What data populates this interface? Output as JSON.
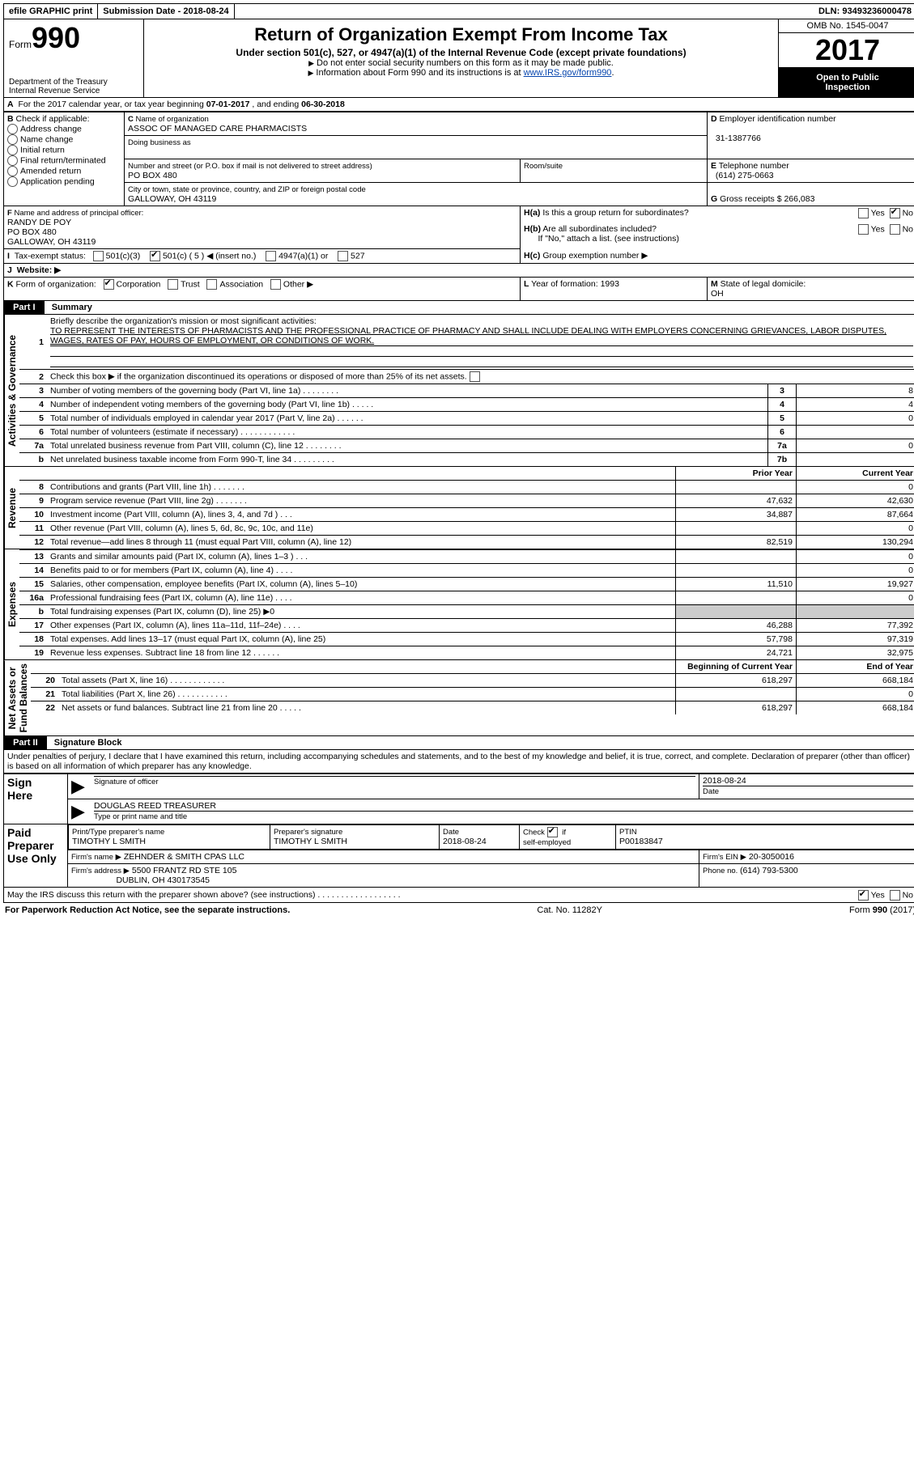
{
  "topbar": {
    "efile": "efile GRAPHIC print",
    "submission_label": "Submission Date - ",
    "submission_date": "2018-08-24",
    "dln_label": "DLN: ",
    "dln": "93493236000478"
  },
  "header": {
    "form_word": "Form",
    "form_number": "990",
    "dept1": "Department of the Treasury",
    "dept2": "Internal Revenue Service",
    "title": "Return of Organization Exempt From Income Tax",
    "subtitle": "Under section 501(c), 527, or 4947(a)(1) of the Internal Revenue Code (except private foundations)",
    "note1": "Do not enter social security numbers on this form as it may be made public.",
    "note2_pre": "Information about Form 990 and its instructions is at ",
    "note2_link": "www.IRS.gov/form990",
    "omb": "OMB No. 1545-0047",
    "year": "2017",
    "open1": "Open to Public",
    "open2": "Inspection"
  },
  "A": {
    "text_pre": "For the 2017 calendar year, or tax year beginning ",
    "begin": "07-01-2017",
    "mid": " , and ending ",
    "end": "06-30-2018"
  },
  "B": {
    "label": "Check if applicable:",
    "opts": [
      "Address change",
      "Name change",
      "Initial return",
      "Final return/terminated",
      "Amended return",
      "Application pending"
    ]
  },
  "C": {
    "name_label": "Name of organization",
    "name": "ASSOC OF MANAGED CARE PHARMACISTS",
    "dba_label": "Doing business as",
    "dba": "",
    "street_label": "Number and street (or P.O. box if mail is not delivered to street address)",
    "room_label": "Room/suite",
    "street": "PO BOX 480",
    "city_label": "City or town, state or province, country, and ZIP or foreign postal code",
    "city": "GALLOWAY, OH  43119"
  },
  "D": {
    "label": "Employer identification number",
    "value": "31-1387766"
  },
  "E": {
    "label": "Telephone number",
    "value": "(614) 275-0663"
  },
  "G": {
    "label": "Gross receipts $ ",
    "value": "266,083"
  },
  "F": {
    "label": "Name and address of principal officer:",
    "name": "RANDY DE POY",
    "street": "PO BOX 480",
    "city": "GALLOWAY, OH  43119"
  },
  "H": {
    "a": "Is this a group return for subordinates?",
    "b": "Are all subordinates included?",
    "b_note": "If \"No,\" attach a list. (see instructions)",
    "c": "Group exemption number ▶",
    "yes": "Yes",
    "no": "No"
  },
  "I": {
    "label": "Tax-exempt status:",
    "opts": [
      "501(c)(3)",
      "501(c) ( 5 ) ◀ (insert no.)",
      "4947(a)(1) or",
      "527"
    ]
  },
  "J": {
    "label": "Website: ▶",
    "value": ""
  },
  "K": {
    "label": "Form of organization:",
    "opts": [
      "Corporation",
      "Trust",
      "Association",
      "Other ▶"
    ]
  },
  "L": {
    "label": "Year of formation: ",
    "value": "1993"
  },
  "M": {
    "label": "State of legal domicile:",
    "value": "OH"
  },
  "part1": {
    "label": "Part I",
    "title": "Summary",
    "q1": "Briefly describe the organization's mission or most significant activities:",
    "mission": "TO REPRESENT THE INTERESTS OF PHARMACISTS AND THE PROFESSIONAL PRACTICE OF PHARMACY AND SHALL INCLUDE DEALING WITH EMPLOYERS CONCERNING GRIEVANCES, LABOR DISPUTES, WAGES, RATES OF PAY, HOURS OF EMPLOYMENT, OR CONDITIONS OF WORK.",
    "q2": "Check this box ▶       if the organization discontinued its operations or disposed of more than 25% of its net assets.",
    "vert_activities": "Activities & Governance",
    "vert_revenue": "Revenue",
    "vert_expenses": "Expenses",
    "vert_net": "Net Assets or\nFund Balances",
    "lines_gov": [
      {
        "n": "3",
        "t": "Number of voting members of the governing body (Part VI, line 1a)  .    .    .    .    .    .    .    .",
        "box": "3",
        "v": "8"
      },
      {
        "n": "4",
        "t": "Number of independent voting members of the governing body (Part VI, line 1b)   .    .    .    .    .",
        "box": "4",
        "v": "4"
      },
      {
        "n": "5",
        "t": "Total number of individuals employed in calendar year 2017 (Part V, line 2a)   .    .    .    .    .    .",
        "box": "5",
        "v": "0"
      },
      {
        "n": "6",
        "t": "Total number of volunteers (estimate if necessary)   .    .    .    .    .    .    .    .    .    .    .    .",
        "box": "6",
        "v": ""
      },
      {
        "n": "7a",
        "t": "Total unrelated business revenue from Part VIII, column (C), line 12   .    .    .    .    .    .    .    .",
        "box": "7a",
        "v": "0"
      },
      {
        "n": "b",
        "t": "Net unrelated business taxable income from Form 990-T, line 34   .    .    .    .    .    .    .    .    .",
        "box": "7b",
        "v": ""
      }
    ],
    "col_prior": "Prior Year",
    "col_current": "Current Year",
    "lines_rev": [
      {
        "n": "8",
        "t": "Contributions and grants (Part VIII, line 1h)   .    .    .    .    .    .    .",
        "p": "",
        "c": "0"
      },
      {
        "n": "9",
        "t": "Program service revenue (Part VIII, line 2g)   .    .    .    .    .    .    .",
        "p": "47,632",
        "c": "42,630"
      },
      {
        "n": "10",
        "t": "Investment income (Part VIII, column (A), lines 3, 4, and 7d )   .    .    .",
        "p": "34,887",
        "c": "87,664"
      },
      {
        "n": "11",
        "t": "Other revenue (Part VIII, column (A), lines 5, 6d, 8c, 9c, 10c, and 11e)",
        "p": "",
        "c": "0"
      },
      {
        "n": "12",
        "t": "Total revenue—add lines 8 through 11 (must equal Part VIII, column (A), line 12)",
        "p": "82,519",
        "c": "130,294"
      }
    ],
    "lines_exp": [
      {
        "n": "13",
        "t": "Grants and similar amounts paid (Part IX, column (A), lines 1–3 )   .    .    .",
        "p": "",
        "c": "0"
      },
      {
        "n": "14",
        "t": "Benefits paid to or for members (Part IX, column (A), line 4)   .    .    .    .",
        "p": "",
        "c": "0"
      },
      {
        "n": "15",
        "t": "Salaries, other compensation, employee benefits (Part IX, column (A), lines 5–10)",
        "p": "11,510",
        "c": "19,927"
      },
      {
        "n": "16a",
        "t": "Professional fundraising fees (Part IX, column (A), line 11e)   .    .    .    .",
        "p": "",
        "c": "0"
      },
      {
        "n": "b",
        "t": "Total fundraising expenses (Part IX, column (D), line 25) ▶0",
        "p": "__shade__",
        "c": "__shade__"
      },
      {
        "n": "17",
        "t": "Other expenses (Part IX, column (A), lines 11a–11d, 11f–24e)   .    .    .    .",
        "p": "46,288",
        "c": "77,392"
      },
      {
        "n": "18",
        "t": "Total expenses. Add lines 13–17 (must equal Part IX, column (A), line 25)",
        "p": "57,798",
        "c": "97,319"
      },
      {
        "n": "19",
        "t": "Revenue less expenses. Subtract line 18 from line 12   .    .    .    .    .    .",
        "p": "24,721",
        "c": "32,975"
      }
    ],
    "col_begin": "Beginning of Current Year",
    "col_end": "End of Year",
    "lines_net": [
      {
        "n": "20",
        "t": "Total assets (Part X, line 16)   .    .    .    .    .    .    .    .    .    .    .    .",
        "p": "618,297",
        "c": "668,184"
      },
      {
        "n": "21",
        "t": "Total liabilities (Part X, line 26)   .    .    .    .    .    .    .    .    .    .    .",
        "p": "",
        "c": "0"
      },
      {
        "n": "22",
        "t": "Net assets or fund balances. Subtract line 21 from line 20   .    .    .    .    .",
        "p": "618,297",
        "c": "668,184"
      }
    ]
  },
  "part2": {
    "label": "Part II",
    "title": "Signature Block",
    "decl": "Under penalties of perjury, I declare that I have examined this return, including accompanying schedules and statements, and to the best of my knowledge and belief, it is true, correct, and complete. Declaration of preparer (other than officer) is based on all information of which preparer has any knowledge.",
    "sign_here": "Sign\nHere",
    "sig_officer": "Signature of officer",
    "sig_date_label": "Date",
    "sig_date": "2018-08-24",
    "officer_name": "DOUGLAS REED TREASURER",
    "officer_sub": "Type or print name and title",
    "paid": "Paid\nPreparer\nUse Only",
    "prep_name_label": "Print/Type preparer's name",
    "prep_name": "TIMOTHY L SMITH",
    "prep_sig_label": "Preparer's signature",
    "prep_sig": "TIMOTHY L SMITH",
    "prep_date_label": "Date",
    "prep_date": "2018-08-24",
    "self_label": "Check       if\nself-employed",
    "ptin_label": "PTIN",
    "ptin": "P00183847",
    "firm_name_label": "Firm's name    ▶",
    "firm_name": "ZEHNDER & SMITH CPAS LLC",
    "firm_ein_label": "Firm's EIN ▶",
    "firm_ein": "20-3050016",
    "firm_addr_label": "Firm's address ▶",
    "firm_addr": "5500 FRANTZ RD STE 105",
    "firm_addr2": "DUBLIN, OH  430173545",
    "firm_phone_label": "Phone no. ",
    "firm_phone": "(614) 793-5300",
    "discuss": "May the IRS discuss this return with the preparer shown above? (see instructions)   .    .    .    .    .    .    .    .    .    .    .    .    .    .    .    .    .    .",
    "yes": "Yes",
    "no": "No"
  },
  "footer": {
    "left": "For Paperwork Reduction Act Notice, see the separate instructions.",
    "mid": "Cat. No. 11282Y",
    "right": "Form 990 (2017)"
  }
}
